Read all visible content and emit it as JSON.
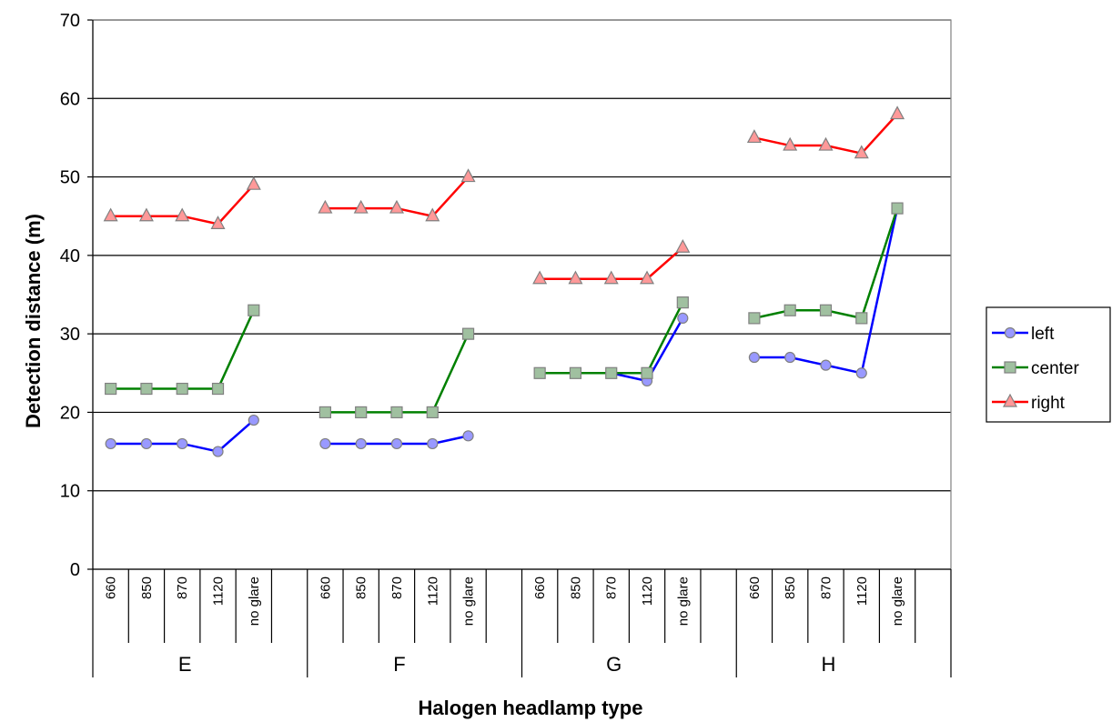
{
  "chart_data": {
    "type": "line",
    "title": "",
    "xlabel": "Halogen headlamp type",
    "ylabel": "Detection distance (m)",
    "ylim": [
      0,
      70
    ],
    "yticks": [
      0,
      10,
      20,
      30,
      40,
      50,
      60,
      70
    ],
    "grid": true,
    "legend_position": "right",
    "groups": [
      "E",
      "F",
      "G",
      "H"
    ],
    "subcategories": [
      "660",
      "850",
      "870",
      "1120",
      "no glare"
    ],
    "series": [
      {
        "name": "left",
        "color": "#0000ff",
        "marker": "circle",
        "marker_fill": "#9999ff",
        "values": [
          [
            16,
            16,
            16,
            15,
            19
          ],
          [
            16,
            16,
            16,
            16,
            17
          ],
          [
            25,
            25,
            25,
            24,
            32
          ],
          [
            27,
            27,
            26,
            25,
            46
          ]
        ]
      },
      {
        "name": "center",
        "color": "#008000",
        "marker": "square",
        "marker_fill": "#a0c0a0",
        "values": [
          [
            23,
            23,
            23,
            23,
            33
          ],
          [
            20,
            20,
            20,
            20,
            30
          ],
          [
            25,
            25,
            25,
            25,
            34
          ],
          [
            32,
            33,
            33,
            32,
            46
          ]
        ]
      },
      {
        "name": "right",
        "color": "#ff0000",
        "marker": "triangle",
        "marker_fill": "#ff9999",
        "values": [
          [
            45,
            45,
            45,
            44,
            49
          ],
          [
            46,
            46,
            46,
            45,
            50
          ],
          [
            37,
            37,
            37,
            37,
            41
          ],
          [
            55,
            54,
            54,
            53,
            58
          ]
        ]
      }
    ]
  }
}
